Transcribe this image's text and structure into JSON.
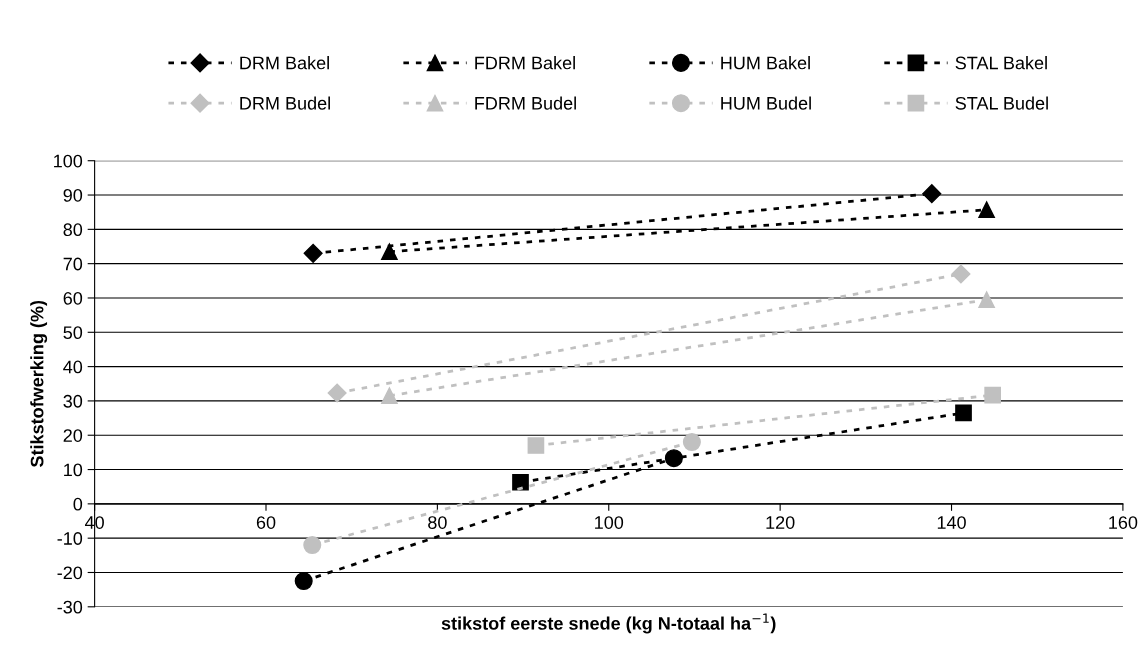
{
  "chart_data": {
    "type": "line",
    "xlabel": "stikstof eerste snede (kg N-totaal ha$^{−1}$)",
    "ylabel": "Stikstofwerking (%)",
    "xlim": [
      40,
      160
    ],
    "xticks": [
      40,
      60,
      80,
      100,
      120,
      140,
      160
    ],
    "ylim": [
      -30,
      100
    ],
    "yticks": [
      -30,
      -20,
      -10,
      0,
      10,
      20,
      30,
      40,
      50,
      60,
      70,
      80,
      90,
      100
    ],
    "grid": "y",
    "legend": "top",
    "line_style": "dashed",
    "series": [
      {
        "name": "DRM Bakel",
        "color": "#000000",
        "marker": "diamond",
        "x": [
          65.5,
          137.7
        ],
        "values": [
          73,
          90.4
        ]
      },
      {
        "name": "FDRM Bakel",
        "color": "#000000",
        "marker": "triangle",
        "x": [
          74.4,
          144.1
        ],
        "values": [
          73.5,
          85.7
        ]
      },
      {
        "name": "HUM Bakel",
        "color": "#000000",
        "marker": "circle",
        "x": [
          64.4,
          107.6
        ],
        "values": [
          -22.5,
          13.3
        ]
      },
      {
        "name": "STAL Bakel",
        "color": "#000000",
        "marker": "square",
        "x": [
          89.7,
          141.4
        ],
        "values": [
          6.3,
          26.5
        ]
      },
      {
        "name": "DRM Budel",
        "color": "#c0c0c0",
        "marker": "diamond",
        "x": [
          68.3,
          141.1
        ],
        "values": [
          32.3,
          67
        ]
      },
      {
        "name": "FDRM Budel",
        "color": "#c0c0c0",
        "marker": "triangle",
        "x": [
          74.4,
          144.1
        ],
        "values": [
          31.5,
          59.5
        ]
      },
      {
        "name": "HUM Budel",
        "color": "#c0c0c0",
        "marker": "circle",
        "x": [
          65.4,
          109.7
        ],
        "values": [
          -12,
          18
        ]
      },
      {
        "name": "STAL Budel",
        "color": "#c0c0c0",
        "marker": "square",
        "x": [
          91.5,
          144.8
        ],
        "values": [
          17,
          31.7
        ]
      }
    ]
  }
}
